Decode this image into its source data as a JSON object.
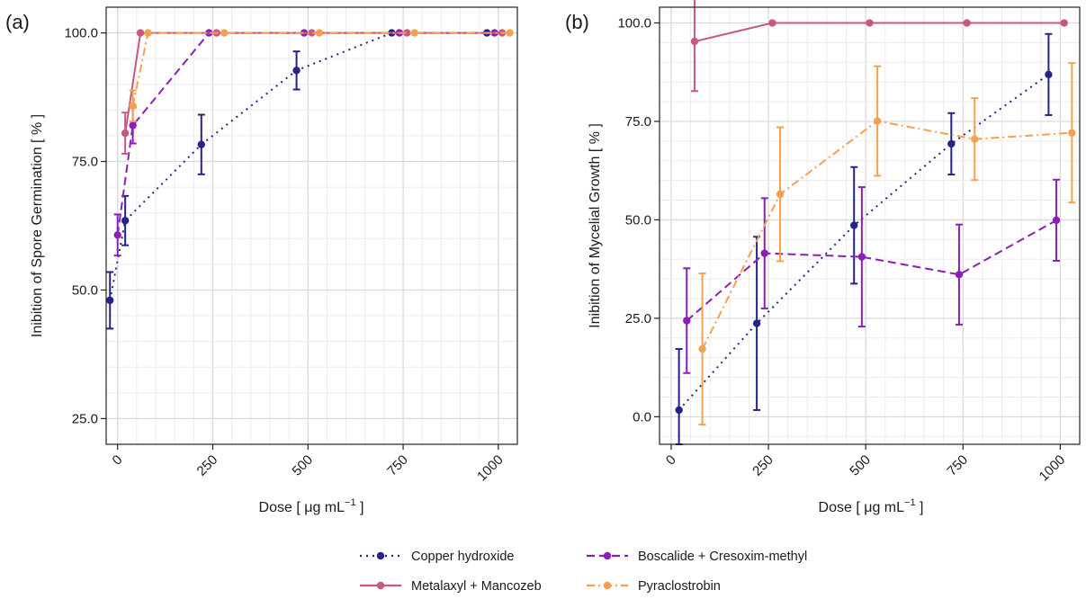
{
  "figure": {
    "legend": {
      "placement": "bottom-center",
      "items": [
        {
          "series": "Copper hydroxide",
          "label": "Copper hydroxide"
        },
        {
          "series": "Boscalide + Cresoxim-methyl",
          "label": "Boscalide + Cresoxim-methyl"
        },
        {
          "series": "Metalaxyl + Mancozeb",
          "label": "Metalaxyl + Mancozeb"
        },
        {
          "series": "Pyraclostrobin",
          "label": "Pyraclostrobin"
        }
      ]
    },
    "styles": {
      "Copper hydroxide": {
        "color": "#23238a",
        "dash": "2,5"
      },
      "Boscalide + Cresoxim-methyl": {
        "color": "#8a1fb5",
        "dash": "9,5"
      },
      "Metalaxyl + Mancozeb": {
        "color": "#c9587f",
        "dash": ""
      },
      "Pyraclostrobin": {
        "color": "#f5a04f",
        "dash": "9,4,2,4"
      }
    }
  },
  "chart_data": [
    {
      "panel": "(a)",
      "type": "line",
      "xlabel": "Dose [ μg mL",
      "xlabel_sup": "−1",
      "xlabel_end": " ]",
      "ylabel": "Inibition of Spore Germination [ % ]",
      "xlim": [
        -30,
        1050
      ],
      "ylim": [
        20,
        105
      ],
      "xticks": [
        0,
        250,
        500,
        750,
        1000
      ],
      "xtick_labels": [
        "0",
        "250",
        "500",
        "750",
        "1000"
      ],
      "yticks": [
        25,
        50,
        75,
        100
      ],
      "ytick_labels": [
        "25.0",
        "50.0",
        "75.0",
        "100.0"
      ],
      "grid": true,
      "series": [
        {
          "name": "Copper hydroxide",
          "x": [
            -20,
            20,
            220,
            470,
            720,
            970
          ],
          "y": [
            48,
            63.5,
            78.3,
            92.7,
            100,
            100
          ],
          "err": [
            5.5,
            4.8,
            5.8,
            3.7,
            0,
            0
          ]
        },
        {
          "name": "Boscalide + Cresoxim-methyl",
          "x": [
            0,
            40,
            240,
            490,
            740,
            990
          ],
          "y": [
            60.7,
            82,
            100,
            100,
            100,
            100
          ],
          "err": [
            4,
            3.5,
            0,
            0,
            0,
            0
          ]
        },
        {
          "name": "Metalaxyl + Mancozeb",
          "x": [
            20,
            60,
            260,
            510,
            760,
            1010
          ],
          "y": [
            80.5,
            100,
            100,
            100,
            100,
            100
          ],
          "err": [
            4,
            0,
            0,
            0,
            0,
            0
          ]
        },
        {
          "name": "Pyraclostrobin",
          "x": [
            40,
            80,
            280,
            530,
            780,
            1030
          ],
          "y": [
            85.8,
            100,
            100,
            100,
            100,
            100
          ],
          "err": [
            3,
            0,
            0,
            0,
            0,
            0
          ]
        }
      ]
    },
    {
      "panel": "(b)",
      "type": "line",
      "xlabel": "Dose [ μg mL",
      "xlabel_sup": "−1",
      "xlabel_end": " ]",
      "ylabel": "Inibition of Mycelial Growth [ % ]",
      "xlim": [
        -30,
        1050
      ],
      "ylim": [
        -7,
        104
      ],
      "xticks": [
        0,
        250,
        500,
        750,
        1000
      ],
      "xtick_labels": [
        "0",
        "250",
        "500",
        "750",
        "1000"
      ],
      "yticks": [
        0,
        25,
        50,
        75,
        100
      ],
      "ytick_labels": [
        "0.0",
        "25.0",
        "50.0",
        "75.0",
        "100.0"
      ],
      "grid": true,
      "series": [
        {
          "name": "Copper hydroxide",
          "x": [
            20,
            220,
            470,
            720,
            970
          ],
          "y": [
            1.7,
            23.7,
            48.6,
            69.3,
            86.9
          ],
          "err": [
            15.5,
            22,
            14.8,
            7.8,
            10.3
          ]
        },
        {
          "name": "Boscalide + Cresoxim-methyl",
          "x": [
            40,
            240,
            490,
            740,
            990
          ],
          "y": [
            24.4,
            41.5,
            40.6,
            36.1,
            49.9
          ],
          "err": [
            13.3,
            14,
            17.7,
            12.7,
            10.3
          ]
        },
        {
          "name": "Metalaxyl + Mancozeb",
          "x": [
            60,
            260,
            510,
            760,
            1010
          ],
          "y": [
            95.3,
            100,
            100,
            100,
            100
          ],
          "err": [
            12.6,
            0,
            0,
            0,
            0
          ]
        },
        {
          "name": "Pyraclostrobin",
          "x": [
            80,
            280,
            530,
            780,
            1030
          ],
          "y": [
            17.2,
            56.5,
            75.1,
            70.5,
            72.1
          ],
          "err": [
            19.2,
            17,
            13.9,
            10.4,
            17.7
          ]
        }
      ]
    }
  ]
}
